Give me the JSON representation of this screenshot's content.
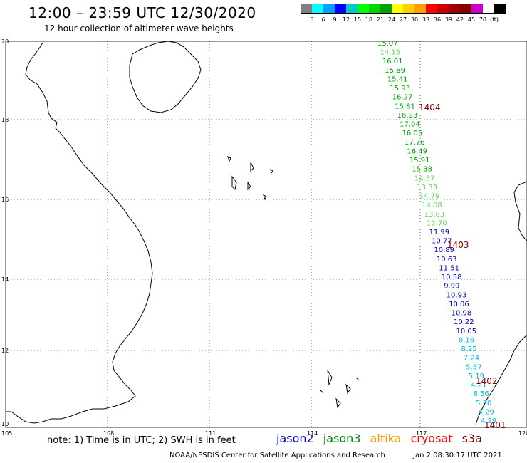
{
  "header": {
    "title": "12:00 – 23:59 UTC 12/30/2020",
    "subtitle": "12 hour collection of altimeter wave heights"
  },
  "scale": {
    "colors": [
      "#7f7f7f",
      "#00ffff",
      "#00a0ff",
      "#0000ff",
      "#00c8c8",
      "#00ff00",
      "#00d200",
      "#00a000",
      "#ffff00",
      "#ffd000",
      "#ffa000",
      "#ff0000",
      "#c80000",
      "#a00000",
      "#800000",
      "#c800c8",
      "#ffffff",
      "#000000"
    ],
    "labels": [
      "3",
      "6",
      "9",
      "12",
      "15",
      "18",
      "21",
      "24",
      "27",
      "30",
      "33",
      "36",
      "39",
      "42",
      "45",
      "70"
    ],
    "unit": "(ft)"
  },
  "map": {
    "lon_ticks": [
      "105",
      "108",
      "111",
      "114",
      "117",
      "120"
    ],
    "lat_ticks": [
      "20",
      "18",
      "16",
      "14",
      "12",
      "10"
    ]
  },
  "satellite_colors": {
    "jason2": "#0000cc",
    "jason3": "#008000",
    "altika": "#ff9900",
    "cryosat": "#ff0000",
    "s3a": "#800000",
    "green1": "#00a000",
    "green2": "#60d060",
    "blue": "#0000c0",
    "cyan": "#00b8e0"
  },
  "observations": [
    {
      "v": "15.07",
      "c": "green1"
    },
    {
      "v": "14.15",
      "c": "green2"
    },
    {
      "v": "16.01",
      "c": "green1"
    },
    {
      "v": "15.89",
      "c": "green1"
    },
    {
      "v": "15.41",
      "c": "green1"
    },
    {
      "v": "15.93",
      "c": "green1"
    },
    {
      "v": "16.27",
      "c": "green1"
    },
    {
      "v": "15.81",
      "c": "green1"
    },
    {
      "v": "16.93",
      "c": "green1"
    },
    {
      "v": "17.04",
      "c": "green1"
    },
    {
      "v": "16.05",
      "c": "green1"
    },
    {
      "v": "17.76",
      "c": "green1"
    },
    {
      "v": "16.49",
      "c": "green1"
    },
    {
      "v": "15.91",
      "c": "green1"
    },
    {
      "v": "15.38",
      "c": "green1"
    },
    {
      "v": "14.57",
      "c": "green2"
    },
    {
      "v": "13.33",
      "c": "green2"
    },
    {
      "v": "14.79",
      "c": "green2"
    },
    {
      "v": "14.08",
      "c": "green2"
    },
    {
      "v": "13.83",
      "c": "green2"
    },
    {
      "v": "12.70",
      "c": "green2"
    },
    {
      "v": "11.99",
      "c": "blue"
    },
    {
      "v": "10.77",
      "c": "blue"
    },
    {
      "v": "10.89",
      "c": "blue"
    },
    {
      "v": "10.63",
      "c": "blue"
    },
    {
      "v": "11.51",
      "c": "blue"
    },
    {
      "v": "10.58",
      "c": "blue"
    },
    {
      "v": "9.99",
      "c": "blue"
    },
    {
      "v": "10.93",
      "c": "blue"
    },
    {
      "v": "10.06",
      "c": "blue"
    },
    {
      "v": "10.98",
      "c": "blue"
    },
    {
      "v": "10.22",
      "c": "blue"
    },
    {
      "v": "10.05",
      "c": "blue"
    },
    {
      "v": "8.16",
      "c": "cyan"
    },
    {
      "v": "8.25",
      "c": "cyan"
    },
    {
      "v": "7.24",
      "c": "cyan"
    },
    {
      "v": "5.57",
      "c": "cyan"
    },
    {
      "v": "5.19",
      "c": "cyan"
    },
    {
      "v": "4.21",
      "c": "cyan"
    },
    {
      "v": "6.56",
      "c": "cyan"
    },
    {
      "v": "5.30",
      "c": "cyan"
    },
    {
      "v": "4.29",
      "c": "cyan"
    },
    {
      "v": "4.29",
      "c": "cyan"
    }
  ],
  "passes": [
    "1404",
    "1403",
    "1402",
    "1401"
  ],
  "footer": {
    "note": "note:  1) Time is in UTC;  2) SWH is in feet",
    "legend": {
      "jason2": "jason2",
      "jason3": "jason3",
      "altika": "altika",
      "cryosat": "cryosat",
      "s3a": "s3a"
    },
    "credit": "NOAA/NESDIS Center for Satellite Applications and Research",
    "timestamp": "Jan  2 08:30:17 UTC 2021"
  }
}
